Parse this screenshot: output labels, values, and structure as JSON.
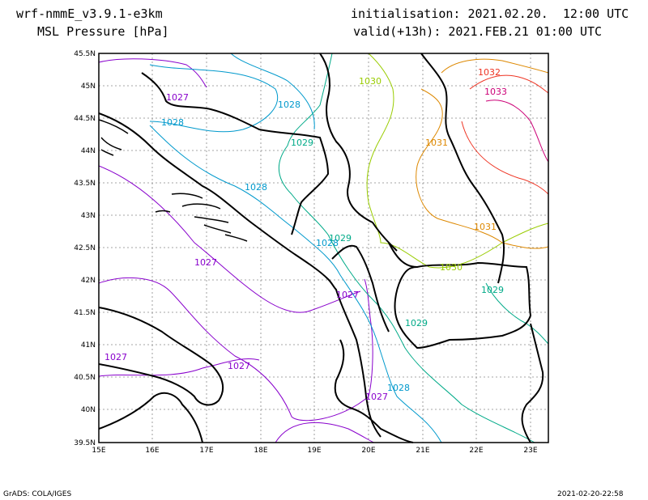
{
  "header": {
    "model": "wrf-nmmE_v3.9.1-e3km",
    "variable": "MSL Pressure [hPa]",
    "init": "initialisation: 2021.02.20.  12:00 UTC",
    "valid": "valid(+13h): 2021.FEB.21 01:00 UTC"
  },
  "footer": {
    "left": "GrADS: COLA/IGES",
    "right": "2021-02-20-22:58"
  },
  "axes": {
    "lon_labels": [
      "15E",
      "16E",
      "17E",
      "18E",
      "19E",
      "20E",
      "21E",
      "22E",
      "23E"
    ],
    "lat_labels": [
      "45.5N",
      "45N",
      "44.5N",
      "44N",
      "43.5N",
      "43N",
      "42.5N",
      "42N",
      "41.5N",
      "41N",
      "40.5N",
      "40N",
      "39.5N"
    ]
  },
  "contour_labels": [
    {
      "text": "1027",
      "color": "#8800cc"
    },
    {
      "text": "1028",
      "color": "#0099cc"
    },
    {
      "text": "1028",
      "color": "#0099cc"
    },
    {
      "text": "1028",
      "color": "#0099cc"
    },
    {
      "text": "1029",
      "color": "#00aa88"
    },
    {
      "text": "1030",
      "color": "#99cc00"
    },
    {
      "text": "1031",
      "color": "#dd8800"
    },
    {
      "text": "1032",
      "color": "#ee3322"
    },
    {
      "text": "1033",
      "color": "#cc0077"
    },
    {
      "text": "1031",
      "color": "#dd8800"
    },
    {
      "text": "1029",
      "color": "#00aa88"
    },
    {
      "text": "1028",
      "color": "#0099cc"
    },
    {
      "text": "1027",
      "color": "#8800cc"
    },
    {
      "text": "1027",
      "color": "#8800cc"
    },
    {
      "text": "1030",
      "color": "#99cc00"
    },
    {
      "text": "1029",
      "color": "#00aa88"
    },
    {
      "text": "1029",
      "color": "#00aa88"
    },
    {
      "text": "1027",
      "color": "#8800cc"
    },
    {
      "text": "1027",
      "color": "#8800cc"
    },
    {
      "text": "1028",
      "color": "#0099cc"
    },
    {
      "text": "1027",
      "color": "#8800cc"
    }
  ]
}
